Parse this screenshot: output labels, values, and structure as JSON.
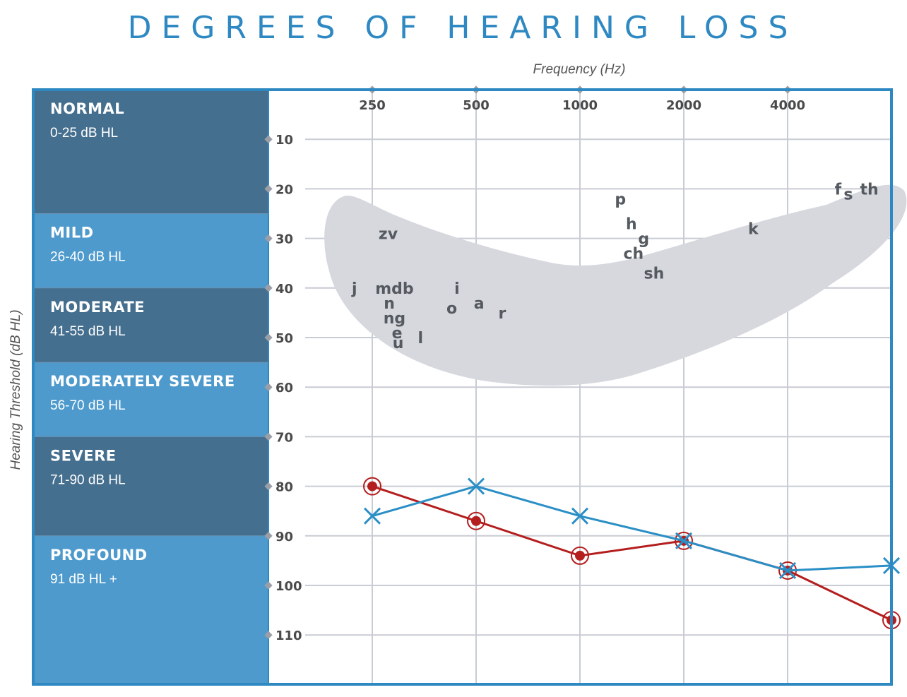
{
  "colors": {
    "title": "#2e88c2",
    "frame": "#2e88c2",
    "band_dark": "#456f8f",
    "band_light": "#4e9acd",
    "grid": "#c8ccd4",
    "banana": "#d6d8de",
    "red_series": "#b41e1e",
    "blue_series": "#2a8fc6",
    "label_gray": "#555555"
  },
  "chart_data": {
    "type": "line",
    "title": "DEGREES OF HEARING LOSS",
    "xlabel": "Frequency (Hz)",
    "ylabel": "Hearing Threshold (dB HL)",
    "x_ticks": [
      "250",
      "500",
      "1000",
      "2000",
      "4000"
    ],
    "y_ticks": [
      10,
      20,
      30,
      40,
      50,
      60,
      70,
      80,
      90,
      100,
      110
    ],
    "y_direction": "downward",
    "y_range": [
      0,
      120
    ],
    "grid": true,
    "bands": [
      {
        "name": "NORMAL",
        "range": "0-25 dB HL",
        "from": 0,
        "to": 25,
        "shade": "dark"
      },
      {
        "name": "MILD",
        "range": "26-40 dB HL",
        "from": 25,
        "to": 40,
        "shade": "light"
      },
      {
        "name": "MODERATE",
        "range": "41-55 dB HL",
        "from": 40,
        "to": 55,
        "shade": "dark"
      },
      {
        "name": "MODERATELY SEVERE",
        "range": "56-70 dB HL",
        "from": 55,
        "to": 70,
        "shade": "light"
      },
      {
        "name": "SEVERE",
        "range": "71-90 dB HL",
        "from": 70,
        "to": 90,
        "shade": "dark"
      },
      {
        "name": "PROFOUND",
        "range": "91 dB HL +",
        "from": 90,
        "to": 120,
        "shade": "light"
      }
    ],
    "series": [
      {
        "marker": "circle",
        "color": "#b41e1e",
        "x": [
          250,
          500,
          1000,
          2000,
          4000,
          8000
        ],
        "y": [
          80,
          87,
          94,
          91,
          97,
          107
        ]
      },
      {
        "marker": "x",
        "color": "#2a8fc6",
        "x": [
          250,
          500,
          1000,
          2000,
          4000,
          8000
        ],
        "y": [
          86,
          80,
          86,
          91,
          97,
          96
        ]
      }
    ],
    "speech_sounds": [
      {
        "text": "zv",
        "x": 278,
        "y": 29
      },
      {
        "text": "j",
        "x": 222,
        "y": 40
      },
      {
        "text": "mdb",
        "x": 290,
        "y": 40
      },
      {
        "text": "n",
        "x": 280,
        "y": 43
      },
      {
        "text": "ng",
        "x": 290,
        "y": 46
      },
      {
        "text": "e",
        "x": 295,
        "y": 49
      },
      {
        "text": "u",
        "x": 297,
        "y": 51
      },
      {
        "text": "l",
        "x": 345,
        "y": 50
      },
      {
        "text": "i",
        "x": 440,
        "y": 40
      },
      {
        "text": "o",
        "x": 425,
        "y": 44
      },
      {
        "text": "a",
        "x": 510,
        "y": 43
      },
      {
        "text": "r",
        "x": 595,
        "y": 45
      },
      {
        "text": "p",
        "x": 1310,
        "y": 22
      },
      {
        "text": "h",
        "x": 1410,
        "y": 27
      },
      {
        "text": "g",
        "x": 1530,
        "y": 30
      },
      {
        "text": "ch",
        "x": 1430,
        "y": 33
      },
      {
        "text": "sh",
        "x": 1640,
        "y": 37
      },
      {
        "text": "k",
        "x": 3180,
        "y": 28
      },
      {
        "text": "f",
        "x": 5600,
        "y": 20
      },
      {
        "text": "s",
        "x": 6000,
        "y": 21
      },
      {
        "text": "th",
        "x": 6900,
        "y": 20
      }
    ]
  }
}
